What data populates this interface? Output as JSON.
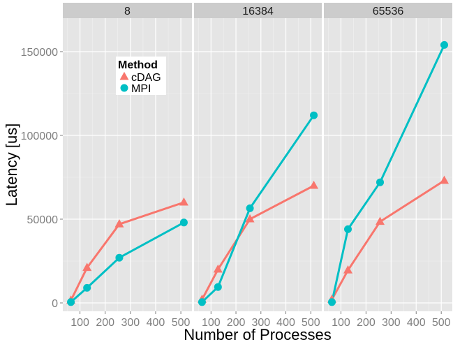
{
  "chart_data": {
    "type": "line",
    "xlabel": "Number of Processes",
    "ylabel": "Latency [us]",
    "x_ticks": [
      100,
      200,
      300,
      400,
      500
    ],
    "y_ticks": [
      0,
      50000,
      100000,
      150000
    ],
    "y_tick_labels": [
      "0",
      "50000",
      "100000",
      "150000"
    ],
    "xlim": [
      32,
      544
    ],
    "ylim": [
      -5000,
      170000
    ],
    "grid": true,
    "legend": {
      "title": "Method",
      "placement": "inside-left",
      "entries": [
        {
          "name": "cDAG",
          "color": "#F8766D",
          "marker": "triangle"
        },
        {
          "name": "MPI",
          "color": "#00BFC4",
          "marker": "circle"
        }
      ]
    },
    "panels": [
      {
        "label": "8",
        "series": [
          {
            "name": "cDAG",
            "x": [
              64,
              128,
              256,
              512
            ],
            "y": [
              1500,
              21000,
              47000,
              60000
            ]
          },
          {
            "name": "MPI",
            "x": [
              64,
              128,
              256,
              512
            ],
            "y": [
              500,
              9000,
              27000,
              48000
            ]
          }
        ]
      },
      {
        "label": "16384",
        "series": [
          {
            "name": "cDAG",
            "x": [
              64,
              128,
              256,
              512
            ],
            "y": [
              2000,
              20000,
              50000,
              70000
            ]
          },
          {
            "name": "MPI",
            "x": [
              64,
              128,
              256,
              512
            ],
            "y": [
              500,
              9500,
              56500,
              112000
            ]
          }
        ]
      },
      {
        "label": "65536",
        "series": [
          {
            "name": "cDAG",
            "x": [
              64,
              128,
              256,
              512
            ],
            "y": [
              2000,
              19500,
              48500,
              73000
            ]
          },
          {
            "name": "MPI",
            "x": [
              64,
              128,
              256,
              512
            ],
            "y": [
              500,
              44000,
              72000,
              154000
            ]
          }
        ]
      }
    ]
  }
}
